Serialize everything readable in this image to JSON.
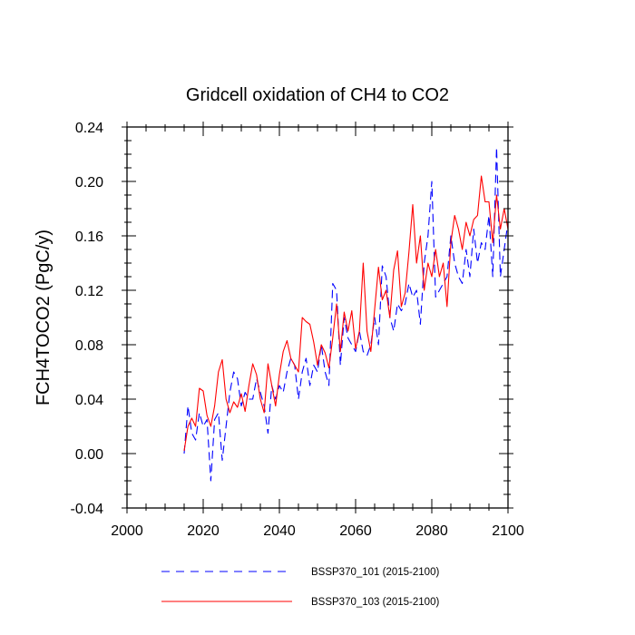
{
  "chart_data": {
    "type": "line",
    "title": "Gridcell oxidation of CH4 to CO2",
    "xlabel": "",
    "ylabel": "FCH4TOCO2  (PgC/y)",
    "xlim": [
      2000,
      2100
    ],
    "ylim": [
      -0.04,
      0.24
    ],
    "xticks": [
      2000,
      2020,
      2040,
      2060,
      2080,
      2100
    ],
    "xtick_labels": [
      "2000",
      "2020",
      "2040",
      "2060",
      "2080",
      "2100"
    ],
    "yticks": [
      -0.04,
      0.0,
      0.04,
      0.08,
      0.12,
      0.16,
      0.2,
      0.24
    ],
    "ytick_labels": [
      "-0.04",
      "0.00",
      "0.04",
      "0.08",
      "0.12",
      "0.16",
      "0.20",
      "0.24"
    ],
    "grid": false,
    "legend_position": "bottom",
    "series": [
      {
        "name": "BSSP370_101 (2015-2100)",
        "color": "#0000ff",
        "style": "dashed",
        "x": [
          2015,
          2016,
          2017,
          2018,
          2019,
          2020,
          2021,
          2022,
          2023,
          2024,
          2025,
          2026,
          2027,
          2028,
          2029,
          2030,
          2031,
          2032,
          2033,
          2034,
          2035,
          2036,
          2037,
          2038,
          2039,
          2040,
          2041,
          2042,
          2043,
          2044,
          2045,
          2046,
          2047,
          2048,
          2049,
          2050,
          2051,
          2052,
          2053,
          2054,
          2055,
          2056,
          2057,
          2058,
          2059,
          2060,
          2061,
          2062,
          2063,
          2064,
          2065,
          2066,
          2067,
          2068,
          2069,
          2070,
          2071,
          2072,
          2073,
          2074,
          2075,
          2076,
          2077,
          2078,
          2079,
          2080,
          2081,
          2082,
          2083,
          2084,
          2085,
          2086,
          2087,
          2088,
          2089,
          2090,
          2091,
          2092,
          2093,
          2094,
          2095,
          2096,
          2097,
          2098,
          2099,
          2100
        ],
        "y": [
          0.0,
          0.035,
          0.015,
          0.01,
          0.03,
          0.02,
          0.025,
          -0.02,
          0.025,
          0.03,
          -0.005,
          0.02,
          0.045,
          0.06,
          0.055,
          0.035,
          0.045,
          0.04,
          0.04,
          0.055,
          0.045,
          0.035,
          0.015,
          0.05,
          0.04,
          0.05,
          0.045,
          0.06,
          0.07,
          0.065,
          0.04,
          0.06,
          0.07,
          0.05,
          0.065,
          0.06,
          0.08,
          0.06,
          0.05,
          0.125,
          0.12,
          0.065,
          0.1,
          0.085,
          0.08,
          0.075,
          0.09,
          0.075,
          0.072,
          0.08,
          0.1,
          0.08,
          0.138,
          0.13,
          0.1,
          0.09,
          0.11,
          0.105,
          0.11,
          0.125,
          0.115,
          0.12,
          0.095,
          0.14,
          0.16,
          0.2,
          0.115,
          0.12,
          0.125,
          0.13,
          0.16,
          0.14,
          0.13,
          0.125,
          0.15,
          0.13,
          0.165,
          0.14,
          0.155,
          0.15,
          0.175,
          0.13,
          0.225,
          0.13,
          0.15,
          0.17
        ]
      },
      {
        "name": "BSSP370_103 (2015-2100)",
        "color": "#ff0000",
        "style": "solid",
        "x": [
          2015,
          2016,
          2017,
          2018,
          2019,
          2020,
          2021,
          2022,
          2023,
          2024,
          2025,
          2026,
          2027,
          2028,
          2029,
          2030,
          2031,
          2032,
          2033,
          2034,
          2035,
          2036,
          2037,
          2038,
          2039,
          2040,
          2041,
          2042,
          2043,
          2044,
          2045,
          2046,
          2047,
          2048,
          2049,
          2050,
          2051,
          2052,
          2053,
          2054,
          2055,
          2056,
          2057,
          2058,
          2059,
          2060,
          2061,
          2062,
          2063,
          2064,
          2065,
          2066,
          2067,
          2068,
          2069,
          2070,
          2071,
          2072,
          2073,
          2074,
          2075,
          2076,
          2077,
          2078,
          2079,
          2080,
          2081,
          2082,
          2083,
          2084,
          2085,
          2086,
          2087,
          2088,
          2089,
          2090,
          2091,
          2092,
          2093,
          2094,
          2095,
          2096,
          2097,
          2098,
          2099,
          2100
        ],
        "y": [
          0.002,
          0.02,
          0.026,
          0.02,
          0.048,
          0.046,
          0.028,
          0.02,
          0.035,
          0.06,
          0.069,
          0.04,
          0.03,
          0.038,
          0.034,
          0.044,
          0.031,
          0.05,
          0.066,
          0.058,
          0.04,
          0.03,
          0.066,
          0.05,
          0.035,
          0.058,
          0.075,
          0.083,
          0.07,
          0.065,
          0.06,
          0.1,
          0.097,
          0.095,
          0.082,
          0.065,
          0.08,
          0.074,
          0.063,
          0.085,
          0.11,
          0.075,
          0.104,
          0.09,
          0.105,
          0.077,
          0.09,
          0.14,
          0.09,
          0.075,
          0.106,
          0.137,
          0.113,
          0.12,
          0.1,
          0.135,
          0.149,
          0.108,
          0.118,
          0.148,
          0.183,
          0.14,
          0.16,
          0.12,
          0.14,
          0.13,
          0.15,
          0.13,
          0.14,
          0.108,
          0.155,
          0.175,
          0.165,
          0.15,
          0.17,
          0.16,
          0.172,
          0.175,
          0.204,
          0.185,
          0.185,
          0.155,
          0.19,
          0.165,
          0.18,
          0.165
        ]
      }
    ]
  }
}
